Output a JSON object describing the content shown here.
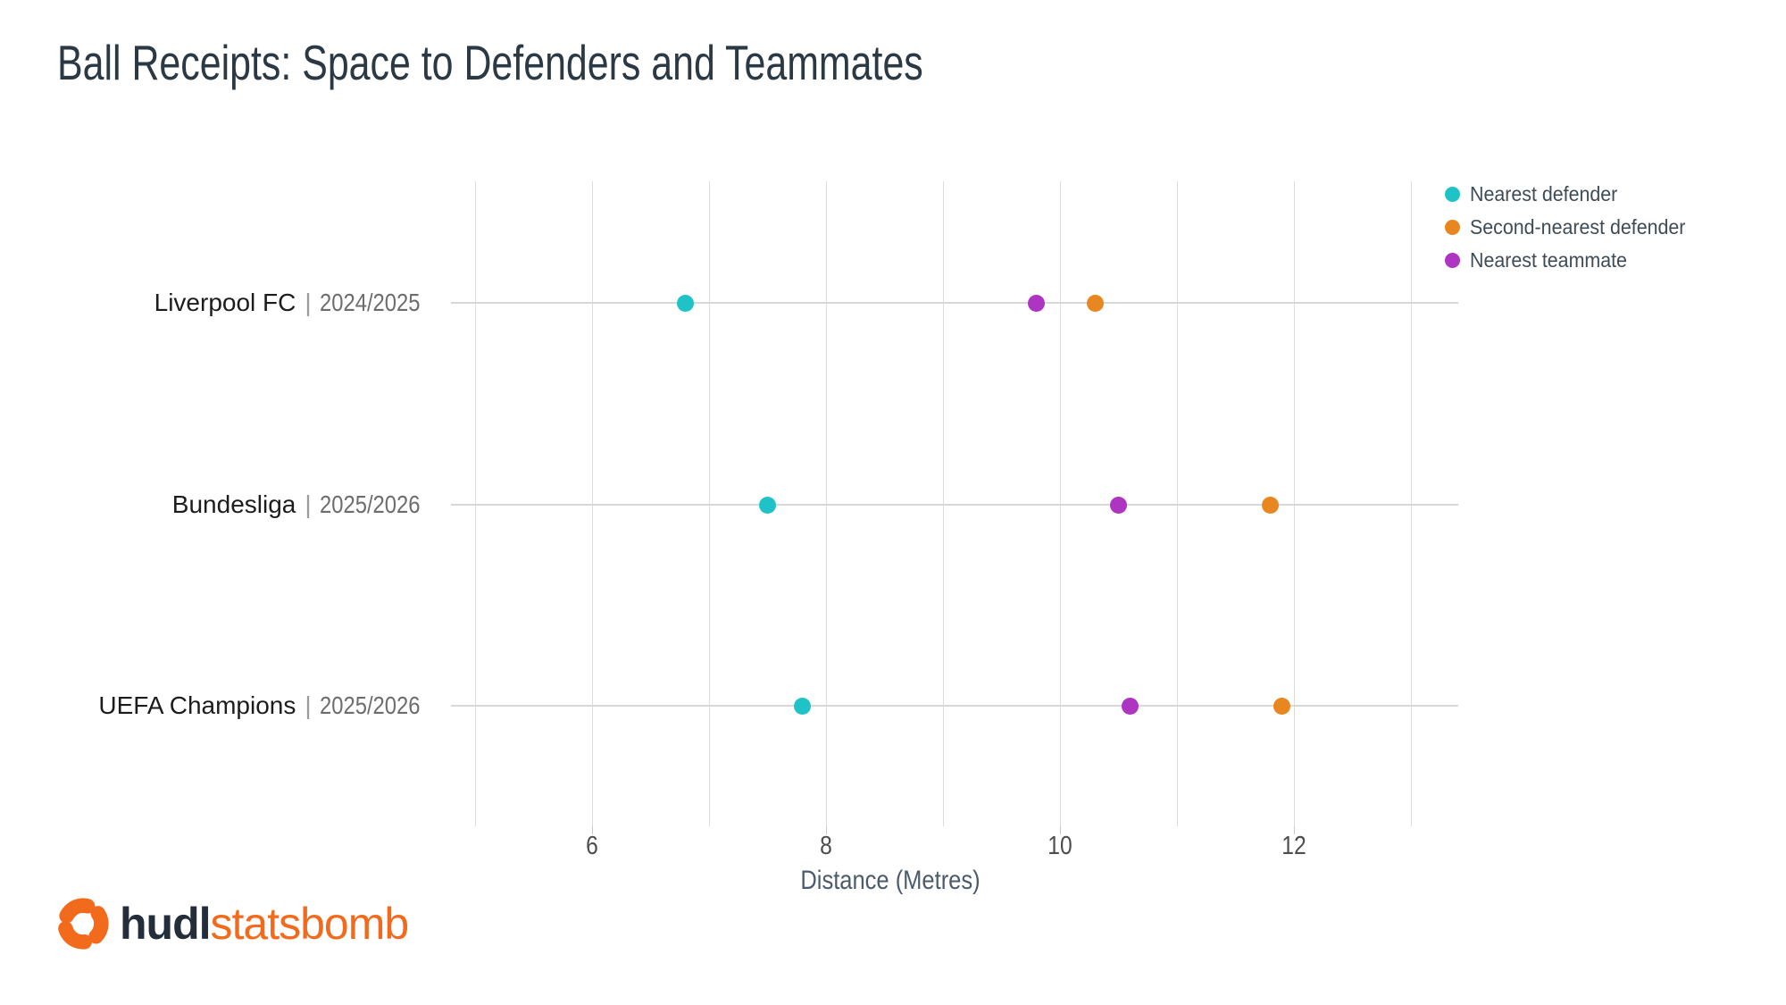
{
  "chart_data": {
    "type": "scatter",
    "subtype": "horizontal-dot-plot",
    "title": "Ball Receipts: Space to Defenders and Teammates",
    "categories": [
      {
        "team": "Liverpool FC",
        "season": "2024/2025"
      },
      {
        "team": "Bundesliga",
        "season": "2025/2026"
      },
      {
        "team": "UEFA Champions",
        "season": "2025/2026"
      }
    ],
    "label_separator": "|",
    "series": [
      {
        "name": "Nearest defender",
        "color": "#1fc3c7",
        "values": [
          6.8,
          7.5,
          7.8
        ]
      },
      {
        "name": "Second-nearest defender",
        "color": "#e8871f",
        "values": [
          10.3,
          11.8,
          11.9
        ]
      },
      {
        "name": "Nearest teammate",
        "color": "#ae34c2",
        "values": [
          9.8,
          10.5,
          10.6
        ]
      }
    ],
    "xlabel": "Distance (Metres)",
    "x_ticks": [
      6,
      8,
      10,
      12
    ],
    "x_gridlines": [
      5,
      6,
      7,
      8,
      9,
      10,
      11,
      12,
      13
    ],
    "xlim": [
      4.8,
      13.4
    ],
    "grid": true,
    "legend_position": "top-right"
  },
  "footer": {
    "brand_primary": "hudl",
    "brand_secondary": "statsbomb",
    "brand_color": "#f26b1d"
  }
}
